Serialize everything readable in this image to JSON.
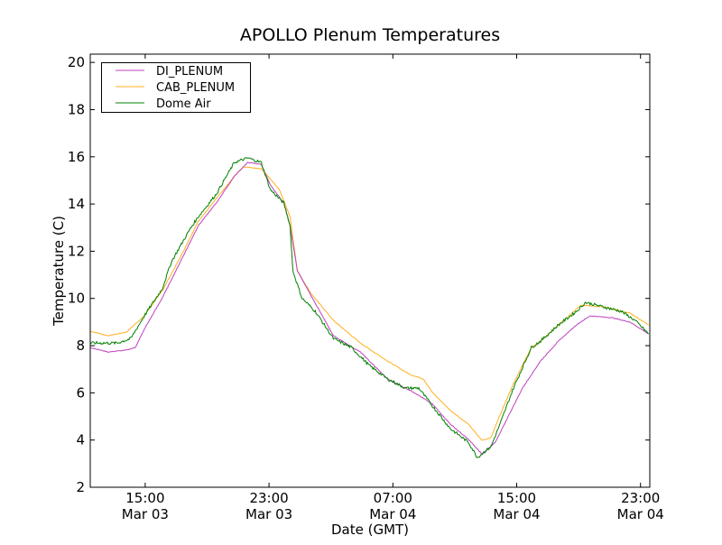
{
  "chart_data": {
    "type": "line",
    "title": "APOLLO Plenum Temperatures",
    "xlabel": "Date (GMT)",
    "ylabel": "Temperature (C)",
    "x_units": "hours since Mar 03 00:00 GMT",
    "xlim": [
      11.45,
      47.6
    ],
    "ylim": [
      2,
      20.35
    ],
    "yticks": [
      2,
      4,
      6,
      8,
      10,
      12,
      14,
      16,
      18,
      20
    ],
    "xticks": [
      {
        "value": 15,
        "time": "15:00",
        "date": "Mar 03"
      },
      {
        "value": 23,
        "time": "23:00",
        "date": "Mar 03"
      },
      {
        "value": 31,
        "time": "07:00",
        "date": "Mar 04"
      },
      {
        "value": 39,
        "time": "15:00",
        "date": "Mar 04"
      },
      {
        "value": 47,
        "time": "23:00",
        "date": "Mar 04"
      }
    ],
    "legend_position": "top-left",
    "grid": false,
    "series": [
      {
        "name": "DI_PLENUM",
        "color": "#bf40bf",
        "points": [
          [
            11.45,
            7.92
          ],
          [
            12.61,
            7.73
          ],
          [
            13.78,
            7.81
          ],
          [
            14.36,
            7.92
          ],
          [
            14.94,
            8.69
          ],
          [
            16.1,
            10.02
          ],
          [
            17.27,
            11.55
          ],
          [
            18.43,
            13.08
          ],
          [
            19.59,
            14.04
          ],
          [
            20.76,
            15.18
          ],
          [
            21.63,
            15.76
          ],
          [
            22.5,
            15.68
          ],
          [
            23.08,
            14.8
          ],
          [
            23.96,
            14.04
          ],
          [
            24.36,
            13.08
          ],
          [
            24.83,
            11.17
          ],
          [
            25.41,
            10.48
          ],
          [
            27.16,
            8.42
          ],
          [
            28.9,
            7.73
          ],
          [
            30.65,
            6.59
          ],
          [
            32.39,
            6.01
          ],
          [
            33.56,
            5.52
          ],
          [
            34.72,
            4.67
          ],
          [
            35.88,
            4.03
          ],
          [
            36.75,
            3.41
          ],
          [
            37.63,
            3.91
          ],
          [
            38.5,
            5.06
          ],
          [
            39.37,
            6.2
          ],
          [
            40.54,
            7.35
          ],
          [
            41.7,
            8.19
          ],
          [
            42.86,
            8.88
          ],
          [
            43.74,
            9.26
          ],
          [
            45.19,
            9.18
          ],
          [
            46.35,
            8.99
          ],
          [
            47.52,
            8.5
          ]
        ]
      },
      {
        "name": "CAB_PLENUM",
        "color": "#ffb020",
        "points": [
          [
            11.45,
            8.61
          ],
          [
            12.61,
            8.42
          ],
          [
            13.78,
            8.57
          ],
          [
            14.94,
            9.26
          ],
          [
            16.1,
            10.33
          ],
          [
            17.27,
            11.74
          ],
          [
            18.43,
            13.27
          ],
          [
            19.59,
            14.23
          ],
          [
            20.76,
            15.18
          ],
          [
            21.34,
            15.57
          ],
          [
            22.5,
            15.49
          ],
          [
            23.08,
            15.07
          ],
          [
            23.67,
            14.61
          ],
          [
            24.36,
            13.46
          ],
          [
            24.83,
            11.17
          ],
          [
            25.7,
            10.22
          ],
          [
            27.16,
            9.07
          ],
          [
            28.9,
            8.11
          ],
          [
            30.65,
            7.35
          ],
          [
            32.1,
            6.78
          ],
          [
            32.97,
            6.59
          ],
          [
            33.56,
            6.01
          ],
          [
            34.72,
            5.25
          ],
          [
            35.88,
            4.67
          ],
          [
            36.75,
            3.99
          ],
          [
            37.34,
            4.1
          ],
          [
            37.92,
            5.06
          ],
          [
            38.79,
            6.39
          ],
          [
            39.95,
            7.92
          ],
          [
            40.54,
            8.19
          ],
          [
            41.7,
            8.88
          ],
          [
            43.15,
            9.72
          ],
          [
            44.61,
            9.64
          ],
          [
            46.35,
            9.37
          ],
          [
            47.52,
            8.88
          ]
        ]
      },
      {
        "name": "Dome Air",
        "color": "#008000",
        "points": [
          [
            11.45,
            8.11
          ],
          [
            13.2,
            8.11
          ],
          [
            14.07,
            8.3
          ],
          [
            14.94,
            9.26
          ],
          [
            16.1,
            10.41
          ],
          [
            16.69,
            11.55
          ],
          [
            17.85,
            12.89
          ],
          [
            18.43,
            13.46
          ],
          [
            19.59,
            14.42
          ],
          [
            20.76,
            15.76
          ],
          [
            21.63,
            15.95
          ],
          [
            22.5,
            15.76
          ],
          [
            23.08,
            14.61
          ],
          [
            23.96,
            14.04
          ],
          [
            24.36,
            13.08
          ],
          [
            24.54,
            11.17
          ],
          [
            25.12,
            10.02
          ],
          [
            25.99,
            9.45
          ],
          [
            27.16,
            8.3
          ],
          [
            28.32,
            7.92
          ],
          [
            29.48,
            7.16
          ],
          [
            30.65,
            6.59
          ],
          [
            31.81,
            6.2
          ],
          [
            32.68,
            6.2
          ],
          [
            33.56,
            5.44
          ],
          [
            34.72,
            4.48
          ],
          [
            35.88,
            3.91
          ],
          [
            36.46,
            3.26
          ],
          [
            37.34,
            3.72
          ],
          [
            37.92,
            4.67
          ],
          [
            38.79,
            6.2
          ],
          [
            39.95,
            7.92
          ],
          [
            40.54,
            8.19
          ],
          [
            41.7,
            8.88
          ],
          [
            42.86,
            9.45
          ],
          [
            43.45,
            9.83
          ],
          [
            44.61,
            9.64
          ],
          [
            45.77,
            9.45
          ],
          [
            46.64,
            9.07
          ],
          [
            47.52,
            8.5
          ]
        ]
      }
    ]
  }
}
